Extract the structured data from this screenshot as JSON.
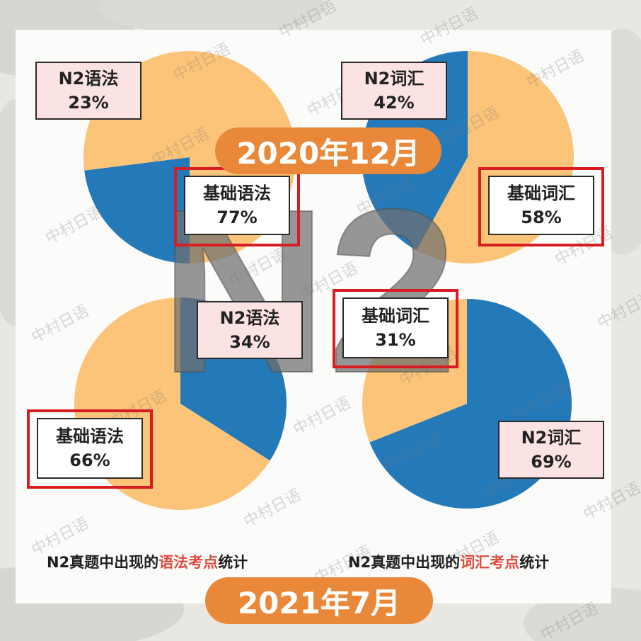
{
  "theme": {
    "blue": "#2479b9",
    "orange": "#fbc478",
    "red": "#d81d22",
    "pill": "#e98838",
    "pink_box": "#fbe3e3"
  },
  "big_mark": "N2",
  "watermark": "中村日语",
  "dates": {
    "top": "2020年12月",
    "bottom": "2021年7月"
  },
  "chart_data": [
    {
      "type": "pie",
      "title": "2020年12月 N2真题中出现的语法考点统计",
      "slices": [
        {
          "label": "N2语法",
          "value": 23,
          "color": "#2479b9",
          "display": "23%"
        },
        {
          "label": "基础语法",
          "value": 77,
          "color": "#fbc478",
          "display": "77%"
        }
      ]
    },
    {
      "type": "pie",
      "title": "2020年12月 N2真题中出现的词汇考点统计",
      "slices": [
        {
          "label": "N2词汇",
          "value": 42,
          "color": "#2479b9",
          "display": "42%"
        },
        {
          "label": "基础词汇",
          "value": 58,
          "color": "#fbc478",
          "display": "58%"
        }
      ]
    },
    {
      "type": "pie",
      "title": "2021年7月 N2真题中出现的语法考点统计",
      "slices": [
        {
          "label": "N2语法",
          "value": 34,
          "color": "#2479b9",
          "display": "34%"
        },
        {
          "label": "基础语法",
          "value": 66,
          "color": "#fbc478",
          "display": "66%"
        }
      ]
    },
    {
      "type": "pie",
      "title": "2021年7月 N2真题中出现的词汇考点统计",
      "slices": [
        {
          "label": "N2词汇",
          "value": 69,
          "color": "#2479b9",
          "display": "69%"
        },
        {
          "label": "基础词汇",
          "value": 31,
          "color": "#fbc478",
          "display": "31%"
        }
      ]
    }
  ],
  "captions": {
    "left": {
      "pre": "N2真题中出现的",
      "highlight": "语法考点",
      "post": "统计"
    },
    "right": {
      "pre": "N2真题中出现的",
      "highlight": "词汇考点",
      "post": "统计"
    }
  }
}
